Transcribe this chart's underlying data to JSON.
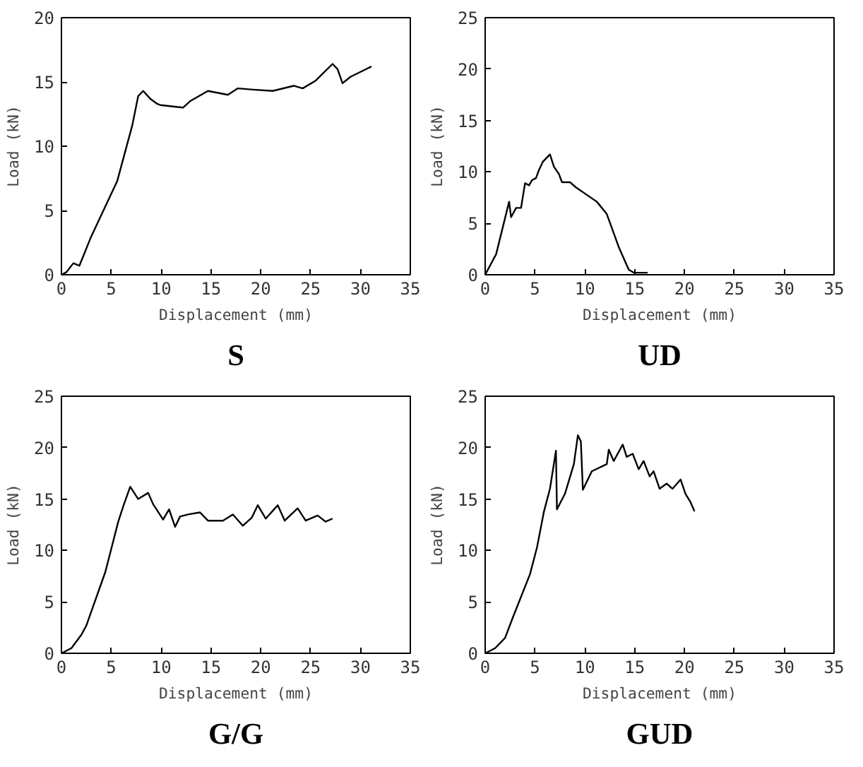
{
  "chart_data": [
    {
      "type": "line",
      "title": "S",
      "xlabel": "Displacement (mm)",
      "ylabel": "Load (kN)",
      "xlim": [
        0,
        35
      ],
      "ylim": [
        0,
        20
      ],
      "xticks": [
        0,
        5,
        10,
        15,
        20,
        25,
        30,
        35
      ],
      "yticks": [
        0,
        5,
        10,
        15,
        20
      ],
      "grid": false,
      "series": [
        {
          "color": "#000000",
          "x": [
            0,
            0.5,
            1.2,
            1.8,
            3.0,
            5.6,
            7.1,
            7.7,
            8.2,
            8.9,
            9.6,
            9.9,
            12.2,
            12.9,
            14.7,
            16.7,
            17.7,
            19.2,
            21.2,
            23.3,
            24.2,
            25.5,
            27.2,
            27.7,
            28.2,
            29.0,
            31.1
          ],
          "values": [
            0,
            0.2,
            0.9,
            0.7,
            3.0,
            7.3,
            11.6,
            13.9,
            14.3,
            13.7,
            13.3,
            13.2,
            13.0,
            13.5,
            14.3,
            14.0,
            14.5,
            14.4,
            14.3,
            14.7,
            14.5,
            15.1,
            16.4,
            16.0,
            14.9,
            15.4,
            16.2
          ]
        }
      ]
    },
    {
      "type": "line",
      "title": "UD",
      "xlabel": "Displacement (mm)",
      "ylabel": "Load (kN)",
      "xlim": [
        0,
        35
      ],
      "ylim": [
        0,
        25
      ],
      "xticks": [
        0,
        5,
        10,
        15,
        20,
        25,
        30,
        35
      ],
      "yticks": [
        0,
        5,
        10,
        15,
        20,
        25
      ],
      "grid": false,
      "series": [
        {
          "color": "#000000",
          "x": [
            0,
            1.1,
            2.4,
            2.6,
            3.1,
            3.6,
            4.0,
            4.4,
            4.7,
            5.1,
            5.4,
            5.8,
            6.5,
            6.9,
            7.4,
            7.7,
            8.5,
            9.1,
            11.2,
            12.2,
            13.4,
            14.4,
            14.9,
            16.3
          ],
          "values": [
            0,
            2.0,
            7.1,
            5.6,
            6.5,
            6.5,
            8.9,
            8.7,
            9.2,
            9.4,
            10.2,
            11.0,
            11.7,
            10.5,
            9.8,
            9.0,
            9.0,
            8.5,
            7.1,
            5.9,
            2.7,
            0.5,
            0.2,
            0.2
          ]
        }
      ]
    },
    {
      "type": "line",
      "title": "G/G",
      "xlabel": "Displacement (mm)",
      "ylabel": "Load (kN)",
      "xlim": [
        0,
        35
      ],
      "ylim": [
        0,
        25
      ],
      "xticks": [
        0,
        5,
        10,
        15,
        20,
        25,
        30,
        35
      ],
      "yticks": [
        0,
        5,
        10,
        15,
        20,
        25
      ],
      "grid": false,
      "series": [
        {
          "color": "#000000",
          "x": [
            0,
            1,
            2,
            2.5,
            4.4,
            5.7,
            6.2,
            6.9,
            7.7,
            8.7,
            9.2,
            10.2,
            10.8,
            11.4,
            11.9,
            12.7,
            13.9,
            14.7,
            16.2,
            17.2,
            18.2,
            19.1,
            19.7,
            20.5,
            21.7,
            22.4,
            23.7,
            24.5,
            25.7,
            26.5,
            27.2
          ],
          "values": [
            0,
            0.5,
            1.8,
            2.7,
            7.9,
            12.8,
            14.3,
            16.2,
            15.0,
            15.6,
            14.5,
            13.0,
            14.0,
            12.3,
            13.3,
            13.5,
            13.7,
            12.9,
            12.9,
            13.5,
            12.4,
            13.2,
            14.4,
            13.1,
            14.4,
            12.9,
            14.1,
            12.9,
            13.4,
            12.8,
            13.1
          ]
        }
      ]
    },
    {
      "type": "line",
      "title": "GUD",
      "xlabel": "Displacement (mm)",
      "ylabel": "Load (kN)",
      "xlim": [
        0,
        35
      ],
      "ylim": [
        0,
        25
      ],
      "xticks": [
        0,
        5,
        10,
        15,
        20,
        25,
        30,
        35
      ],
      "yticks": [
        0,
        5,
        10,
        15,
        20,
        25
      ],
      "grid": false,
      "series": [
        {
          "color": "#000000",
          "x": [
            0,
            1,
            2,
            2.7,
            4.5,
            5.2,
            5.9,
            6.5,
            7.1,
            7.2,
            8.0,
            8.9,
            9.3,
            9.6,
            9.8,
            10.7,
            12.2,
            12.4,
            12.9,
            13.8,
            14.2,
            14.8,
            15.4,
            15.9,
            16.5,
            16.9,
            17.5,
            18.2,
            18.8,
            19.6,
            20.1,
            20.6,
            21.0
          ],
          "values": [
            0,
            0.5,
            1.5,
            3.3,
            7.7,
            10.3,
            13.8,
            16.0,
            19.7,
            14.0,
            15.5,
            18.4,
            21.2,
            20.6,
            15.9,
            17.7,
            18.4,
            19.8,
            18.7,
            20.3,
            19.1,
            19.4,
            17.9,
            18.7,
            17.2,
            17.7,
            16.0,
            16.5,
            16.0,
            16.9,
            15.5,
            14.7,
            13.8
          ]
        }
      ]
    }
  ]
}
